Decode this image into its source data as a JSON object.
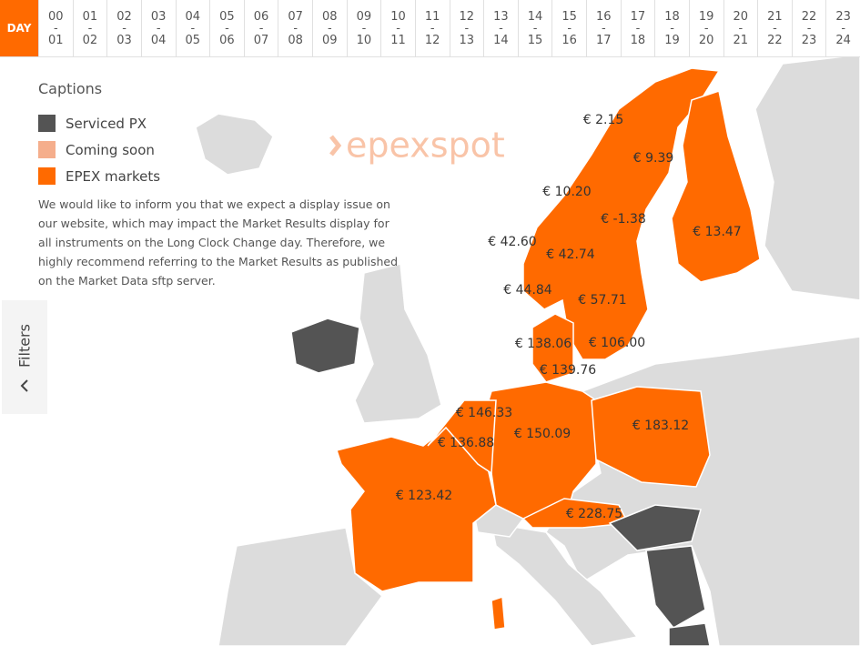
{
  "header": {
    "day_tab": "DAY",
    "separator": "-",
    "hours": [
      {
        "from": "00",
        "to": "01"
      },
      {
        "from": "01",
        "to": "02"
      },
      {
        "from": "02",
        "to": "03"
      },
      {
        "from": "03",
        "to": "04"
      },
      {
        "from": "04",
        "to": "05"
      },
      {
        "from": "05",
        "to": "06"
      },
      {
        "from": "06",
        "to": "07"
      },
      {
        "from": "07",
        "to": "08"
      },
      {
        "from": "08",
        "to": "09"
      },
      {
        "from": "09",
        "to": "10"
      },
      {
        "from": "10",
        "to": "11"
      },
      {
        "from": "11",
        "to": "12"
      },
      {
        "from": "12",
        "to": "13"
      },
      {
        "from": "13",
        "to": "14"
      },
      {
        "from": "14",
        "to": "15"
      },
      {
        "from": "15",
        "to": "16"
      },
      {
        "from": "16",
        "to": "17"
      },
      {
        "from": "17",
        "to": "18"
      },
      {
        "from": "18",
        "to": "19"
      },
      {
        "from": "19",
        "to": "20"
      },
      {
        "from": "20",
        "to": "21"
      },
      {
        "from": "21",
        "to": "22"
      },
      {
        "from": "22",
        "to": "23"
      },
      {
        "from": "23",
        "to": "24"
      }
    ]
  },
  "captions": {
    "title": "Captions",
    "items": [
      {
        "label": "Serviced PX",
        "color": "#545454"
      },
      {
        "label": "Coming soon",
        "color": "#f5ae8c"
      },
      {
        "label": "EPEX markets",
        "color": "#ff6a00"
      }
    ],
    "notice": "We would like to inform you that we expect a display issue on our website, which may impact the Market Results display for all instruments on the Long Clock Change day. Therefore, we highly recommend referring to the Market Results as published on the Market Data sftp server."
  },
  "filters": "Filters",
  "logo": "epexspot",
  "prices": [
    "€ 2.15",
    "€ 9.39",
    "€ 10.20",
    "€ -1.38",
    "€ 13.47",
    "€ 42.60",
    "€ 42.74",
    "€ 44.84",
    "€ 57.71",
    "€ 138.06",
    "€ 106.00",
    "€ 139.76",
    "€ 146.33",
    "€ 136.88",
    "€ 150.09",
    "€ 183.12",
    "€ 123.42",
    "€ 228.75"
  ]
}
